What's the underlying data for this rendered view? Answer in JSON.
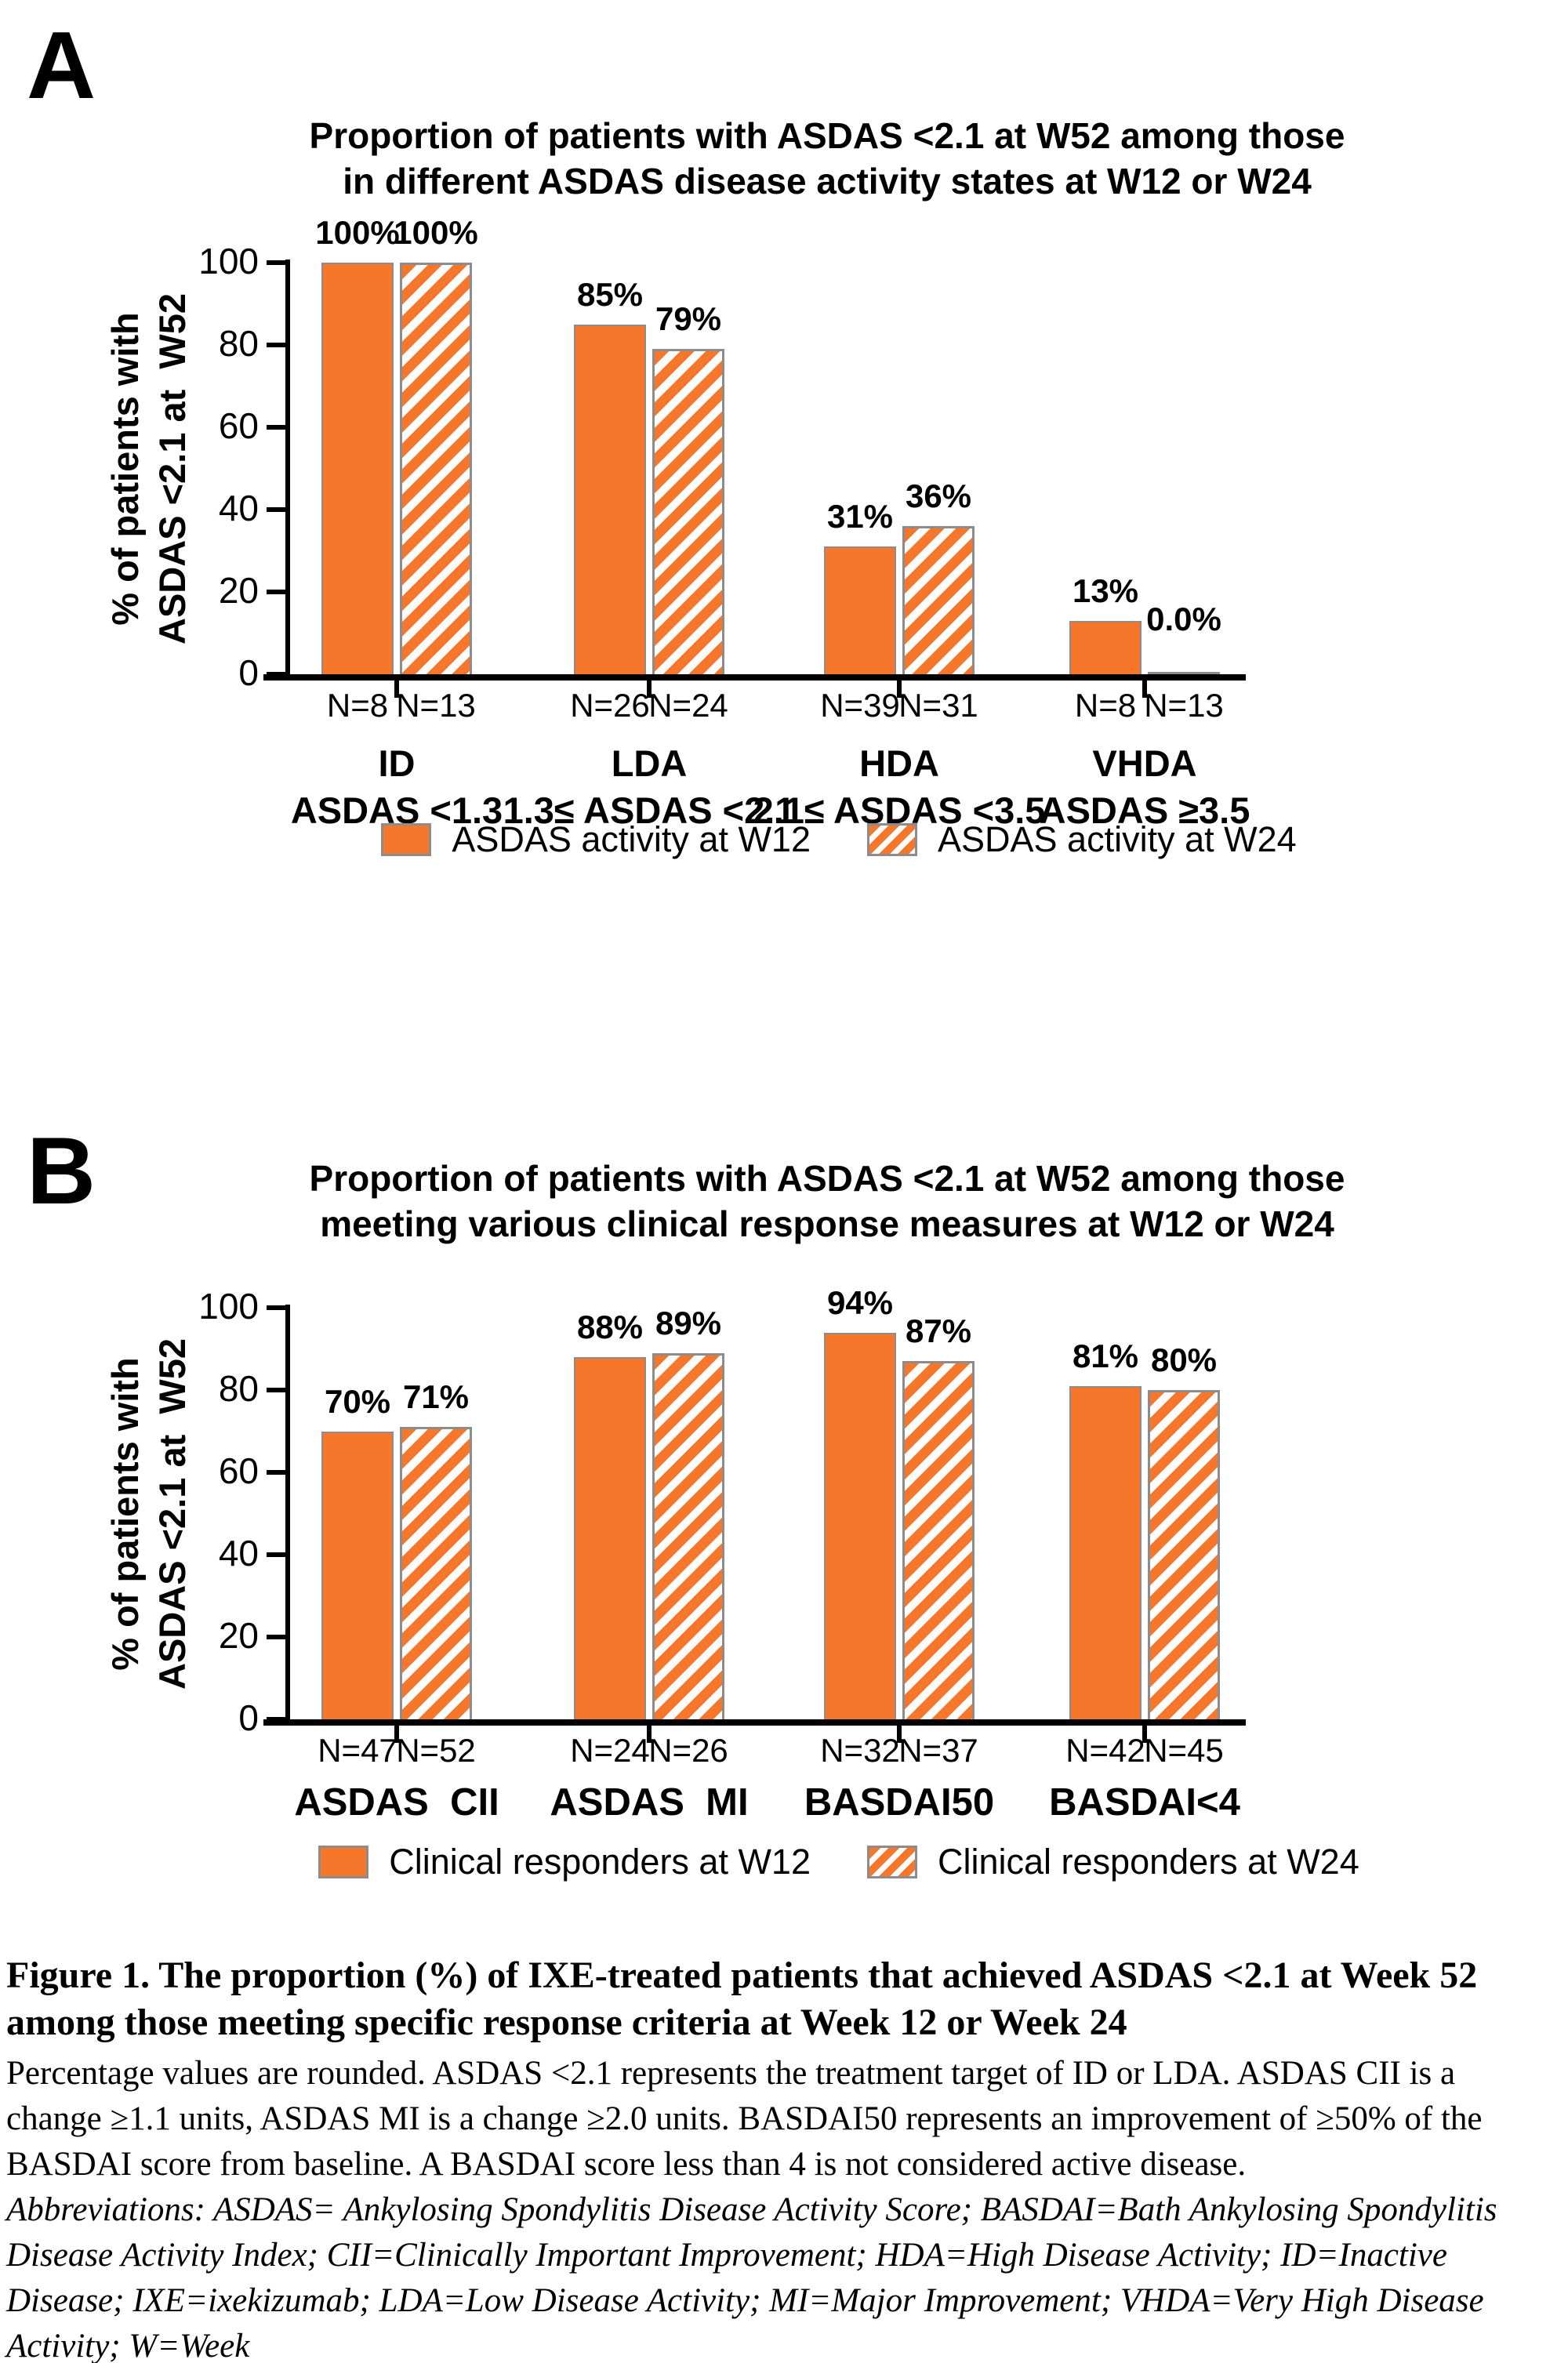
{
  "page": {
    "background": "#ffffff"
  },
  "colors": {
    "bar_orange": "#F6772B",
    "axis_black": "#000000",
    "bar_border_gray": "#8C8C8C",
    "hatch_background": "#FFFFFF",
    "text_black": "#000000"
  },
  "panels": [
    {
      "letter": "A",
      "title_lines": [
        "Proportion of patients with ASDAS <2.1 at W52 among those",
        "in different ASDAS disease activity states at W12 or W24"
      ]
    },
    {
      "letter": "B",
      "title_lines": [
        "Proportion of patients with ASDAS <2.1 at W52 among those",
        "meeting various clinical response measures at W12 or W24"
      ]
    }
  ],
  "chart_data": [
    {
      "type": "bar",
      "title": "Proportion of patients with ASDAS <2.1 at W52 among those in different ASDAS disease activity states at W12 or W24",
      "xlabel": "",
      "ylabel": "% of patients with ASDAS <2.1 at W52",
      "ylabel_lines": [
        "% of patients with",
        "ASDAS <2.1 at  W52"
      ],
      "ylim": [
        0,
        100
      ],
      "yticks": [
        0,
        20,
        40,
        60,
        80,
        100
      ],
      "grid": false,
      "legend_position": "bottom",
      "categories": [
        "ID",
        "LDA",
        "HDA",
        "VHDA"
      ],
      "category_sublabels": [
        "ASDAS <1.3",
        "1.3≤ ASDAS <2.1",
        "2.1≤ ASDAS <3.5",
        "ASDAS ≥3.5"
      ],
      "series": [
        {
          "name": "ASDAS activity at W12",
          "style": "solid",
          "values": [
            100,
            85,
            31,
            13
          ],
          "value_labels": [
            "100%",
            "85%",
            "31%",
            "13%"
          ],
          "n": [
            8,
            26,
            39,
            8
          ],
          "n_labels": [
            "N=8",
            "N=26",
            "N=39",
            "N=8"
          ]
        },
        {
          "name": "ASDAS activity at W24",
          "style": "hatched",
          "values": [
            100,
            79,
            36,
            0
          ],
          "value_labels": [
            "100%",
            "79%",
            "36%",
            "0.0%"
          ],
          "n": [
            13,
            24,
            31,
            13
          ],
          "n_labels": [
            "N=13",
            "N=24",
            "N=31",
            "N=13"
          ]
        }
      ]
    },
    {
      "type": "bar",
      "title": "Proportion of patients with ASDAS <2.1 at W52 among those meeting various clinical response measures at W12 or W24",
      "xlabel": "",
      "ylabel": "% of patients with ASDAS <2.1 at W52",
      "ylabel_lines": [
        "% of patients with",
        "ASDAS <2.1 at  W52"
      ],
      "ylim": [
        0,
        100
      ],
      "yticks": [
        0,
        20,
        40,
        60,
        80,
        100
      ],
      "grid": false,
      "legend_position": "bottom",
      "categories": [
        "ASDAS  CII",
        "ASDAS  MI",
        "BASDAI50",
        "BASDAI<4"
      ],
      "series": [
        {
          "name": "Clinical responders at W12",
          "style": "solid",
          "values": [
            70,
            88,
            94,
            81
          ],
          "value_labels": [
            "70%",
            "88%",
            "94%",
            "81%"
          ],
          "n": [
            47,
            24,
            32,
            42
          ],
          "n_labels": [
            "N=47",
            "N=24",
            "N=32",
            "N=42"
          ]
        },
        {
          "name": "Clinical responders at W24",
          "style": "hatched",
          "values": [
            71,
            89,
            87,
            80
          ],
          "value_labels": [
            "71%",
            "89%",
            "87%",
            "80%"
          ],
          "n": [
            52,
            26,
            37,
            45
          ],
          "n_labels": [
            "N=52",
            "N=26",
            "N=37",
            "N=45"
          ]
        }
      ]
    }
  ],
  "caption": {
    "title": "Figure 1. The proportion (%) of IXE-treated patients that achieved ASDAS <2.1 at Week 52 among those meeting specific response criteria at Week 12 or Week 24",
    "body": "Percentage values are rounded. ASDAS <2.1 represents the treatment target of ID or LDA. ASDAS CII is a change ≥1.1 units, ASDAS MI is a change ≥2.0 units. BASDAI50 represents an improvement of ≥50% of the BASDAI score from baseline. A BASDAI score less than 4 is not considered active disease.",
    "abbreviations": "Abbreviations: ASDAS= Ankylosing Spondylitis Disease Activity Score; BASDAI=Bath Ankylosing Spondylitis Disease Activity Index; CII=Clinically Important Improvement; HDA=High Disease Activity; ID=Inactive Disease; IXE=ixekizumab; LDA=Low Disease Activity; MI=Major Improvement; VHDA=Very High Disease Activity; W=Week"
  }
}
